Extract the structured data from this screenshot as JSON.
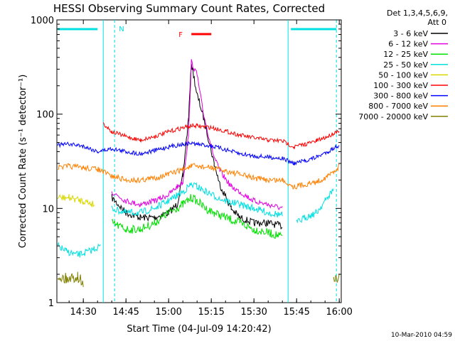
{
  "chart_data": {
    "type": "line",
    "title": "HESSI Observing Summary Count Rates, Corrected",
    "xlabel": "Start Time (04-Jul-09 14:20:42)",
    "ylabel": "Corrected Count Rate (s⁻¹ detector⁻¹)",
    "yscale": "log",
    "ylim": [
      1,
      1000
    ],
    "xlim": [
      "14:20:42",
      "16:00:42"
    ],
    "x_ticks": [
      "14:30",
      "14:45",
      "15:00",
      "15:15",
      "15:30",
      "15:45",
      "16:00"
    ],
    "y_ticks": [
      "1",
      "10",
      "100",
      "1000"
    ],
    "grid": false,
    "legend": {
      "header": [
        "Det 1,3,4,5,6,9,",
        "Att 0"
      ],
      "placement": "right"
    },
    "series": [
      {
        "name": "3 - 6 keV",
        "color": "#000000",
        "x": [
          "14:21",
          "14:25",
          "14:30",
          "14:37",
          "14:40",
          "14:45",
          "14:50",
          "14:55",
          "15:00",
          "15:03",
          "15:05",
          "15:07",
          "15:08",
          "15:10",
          "15:12",
          "15:14",
          "15:16",
          "15:18",
          "15:22",
          "15:25",
          "15:30",
          "15:35",
          "15:40",
          "15:43"
        ],
        "values": [
          null,
          null,
          null,
          null,
          13,
          9,
          8,
          8,
          9,
          11,
          22,
          90,
          350,
          160,
          100,
          55,
          30,
          18,
          10,
          8,
          7,
          7,
          6.5,
          null
        ]
      },
      {
        "name": "6 - 12 keV",
        "color": "#e000e0",
        "x": [
          "14:21",
          "14:37",
          "14:40",
          "14:45",
          "14:50",
          "14:55",
          "15:00",
          "15:03",
          "15:05",
          "15:07",
          "15:08",
          "15:10",
          "15:12",
          "15:14",
          "15:16",
          "15:18",
          "15:22",
          "15:25",
          "15:30",
          "15:35",
          "15:40",
          "15:43"
        ],
        "values": [
          null,
          null,
          15,
          12,
          11,
          12,
          14,
          17,
          19,
          60,
          360,
          260,
          110,
          60,
          35,
          25,
          17,
          15,
          12,
          11,
          10,
          null
        ]
      },
      {
        "name": "12 - 25 keV",
        "color": "#00e000",
        "x": [
          "14:21",
          "14:37",
          "14:40",
          "14:45",
          "14:50",
          "14:55",
          "15:00",
          "15:05",
          "15:08",
          "15:10",
          "15:13",
          "15:16",
          "15:20",
          "15:25",
          "15:30",
          "15:35",
          "15:40",
          "15:43"
        ],
        "values": [
          null,
          null,
          7,
          6,
          6,
          7,
          9,
          11,
          13,
          12,
          10,
          9,
          8,
          7,
          6,
          5.5,
          5,
          null
        ]
      },
      {
        "name": "25 - 50 keV",
        "color": "#00e0e0",
        "x": [
          "14:21",
          "14:24",
          "14:28",
          "14:32",
          "14:36",
          "14:37",
          "14:40",
          "14:45",
          "14:50",
          "14:55",
          "15:00",
          "15:05",
          "15:08",
          "15:10",
          "15:15",
          "15:20",
          "15:25",
          "15:30",
          "15:35",
          "15:40",
          "15:42",
          "15:45",
          "15:48",
          "15:52",
          "15:55",
          "15:58",
          "16:00"
        ],
        "values": [
          4,
          3.5,
          3.2,
          3.5,
          4,
          null,
          10,
          9,
          9,
          10,
          12,
          15,
          18,
          17,
          14,
          12,
          11,
          10,
          9,
          8.5,
          null,
          7,
          8,
          9,
          12,
          16,
          null
        ]
      },
      {
        "name": "50 - 100 keV",
        "color": "#d8d800",
        "x": [
          "14:21",
          "14:25",
          "14:30",
          "14:34",
          "14:37",
          "14:40",
          "14:45",
          "14:50",
          "14:55",
          "15:00",
          "15:05",
          "15:10",
          "15:15",
          "15:20",
          "15:25",
          "15:30",
          "15:35",
          "15:40",
          "15:45",
          "15:50",
          "15:55",
          "16:00"
        ],
        "values": [
          13,
          13,
          12,
          11,
          null,
          null,
          null,
          null,
          null,
          null,
          null,
          null,
          null,
          null,
          null,
          null,
          null,
          null,
          null,
          null,
          null,
          null
        ]
      },
      {
        "name": "100 - 300 keV",
        "color": "#ff0000",
        "x": [
          "14:36",
          "14:37",
          "14:40",
          "14:45",
          "14:50",
          "14:55",
          "15:00",
          "15:05",
          "15:08",
          "15:10",
          "15:15",
          "15:20",
          "15:25",
          "15:30",
          "15:35",
          "15:40",
          "15:44",
          "15:48",
          "15:52",
          "15:56",
          "16:00"
        ],
        "values": [
          null,
          80,
          65,
          58,
          53,
          58,
          65,
          72,
          75,
          75,
          72,
          66,
          60,
          56,
          53,
          52,
          45,
          48,
          52,
          58,
          68
        ]
      },
      {
        "name": "300 - 800 keV",
        "color": "#0000ff",
        "x": [
          "14:21",
          "14:25",
          "14:30",
          "14:35",
          "14:40",
          "14:45",
          "14:50",
          "14:55",
          "15:00",
          "15:05",
          "15:08",
          "15:10",
          "15:15",
          "15:20",
          "15:25",
          "15:30",
          "15:35",
          "15:40",
          "15:44",
          "15:48",
          "15:52",
          "15:56",
          "16:00"
        ],
        "values": [
          47,
          48,
          46,
          40,
          43,
          40,
          38,
          41,
          45,
          48,
          49,
          48,
          46,
          42,
          38,
          36,
          35,
          34,
          30,
          32,
          35,
          40,
          47
        ]
      },
      {
        "name": "800 - 7000 keV",
        "color": "#ff8000",
        "x": [
          "14:21",
          "14:25",
          "14:30",
          "14:35",
          "14:40",
          "14:45",
          "14:50",
          "14:55",
          "15:00",
          "15:05",
          "15:08",
          "15:10",
          "15:15",
          "15:20",
          "15:25",
          "15:30",
          "15:35",
          "15:40",
          "15:44",
          "15:48",
          "15:52",
          "15:56",
          "16:00"
        ],
        "values": [
          27,
          28,
          27,
          26,
          22,
          20,
          20,
          21,
          23,
          26,
          28,
          28,
          27,
          25,
          23,
          21,
          20,
          20,
          17,
          18,
          19,
          22,
          28
        ]
      },
      {
        "name": "7000 - 20000 keV",
        "color": "#808000",
        "x": [
          "14:21",
          "14:24",
          "14:28",
          "14:30",
          "14:31",
          "15:57",
          "15:58",
          "16:00"
        ],
        "values": [
          1.9,
          1.8,
          1.9,
          1.6,
          null,
          null,
          1.7,
          1.9
        ]
      }
    ],
    "annotations": [
      {
        "text": "N",
        "color": "#00e0e0"
      },
      {
        "text": "F",
        "color": "#ff0000"
      }
    ],
    "footer": "10-Mar-2010 04:59"
  }
}
